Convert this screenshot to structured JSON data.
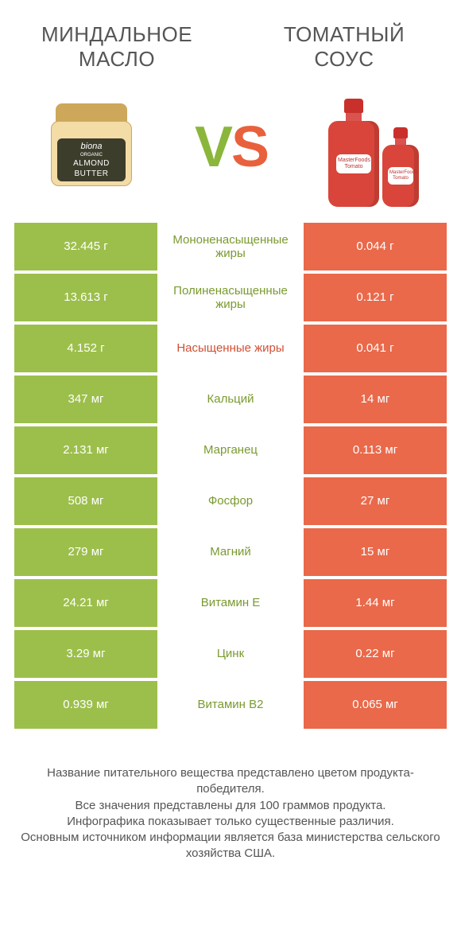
{
  "colors": {
    "left": "#9cbf4b",
    "right": "#e9694a",
    "left_text": "#7a9a2f",
    "right_text": "#d25034"
  },
  "title_left": "МИНДАЛЬНОЕ МАСЛО",
  "title_right": "ТОМАТНЫЙ СОУС",
  "vs": {
    "v": "V",
    "s": "S"
  },
  "jar": {
    "brand": "biona",
    "sub": "ORGANIC",
    "prod1": "ALMOND",
    "prod2": "BUTTER"
  },
  "bottle": {
    "brand": "MasterFoods",
    "name": "Tomato"
  },
  "rows": [
    {
      "left": "32.445 г",
      "label": "Мононенасыщенные жиры",
      "right": "0.044 г",
      "winner": "left"
    },
    {
      "left": "13.613 г",
      "label": "Полиненасыщенные жиры",
      "right": "0.121 г",
      "winner": "left"
    },
    {
      "left": "4.152 г",
      "label": "Насыщенные жиры",
      "right": "0.041 г",
      "winner": "right"
    },
    {
      "left": "347 мг",
      "label": "Кальций",
      "right": "14 мг",
      "winner": "left"
    },
    {
      "left": "2.131 мг",
      "label": "Марганец",
      "right": "0.113 мг",
      "winner": "left"
    },
    {
      "left": "508 мг",
      "label": "Фосфор",
      "right": "27 мг",
      "winner": "left"
    },
    {
      "left": "279 мг",
      "label": "Магний",
      "right": "15 мг",
      "winner": "left"
    },
    {
      "left": "24.21 мг",
      "label": "Витамин E",
      "right": "1.44 мг",
      "winner": "left"
    },
    {
      "left": "3.29 мг",
      "label": "Цинк",
      "right": "0.22 мг",
      "winner": "left"
    },
    {
      "left": "0.939 мг",
      "label": "Витамин B2",
      "right": "0.065 мг",
      "winner": "left"
    }
  ],
  "footer": {
    "l1": "Название питательного вещества представлено цветом продукта-победителя.",
    "l2": "Все значения представлены для 100 граммов продукта.",
    "l3": "Инфографика показывает только существенные различия.",
    "l4": "Основным источником информации является база министерства сельского хозяйства США."
  }
}
